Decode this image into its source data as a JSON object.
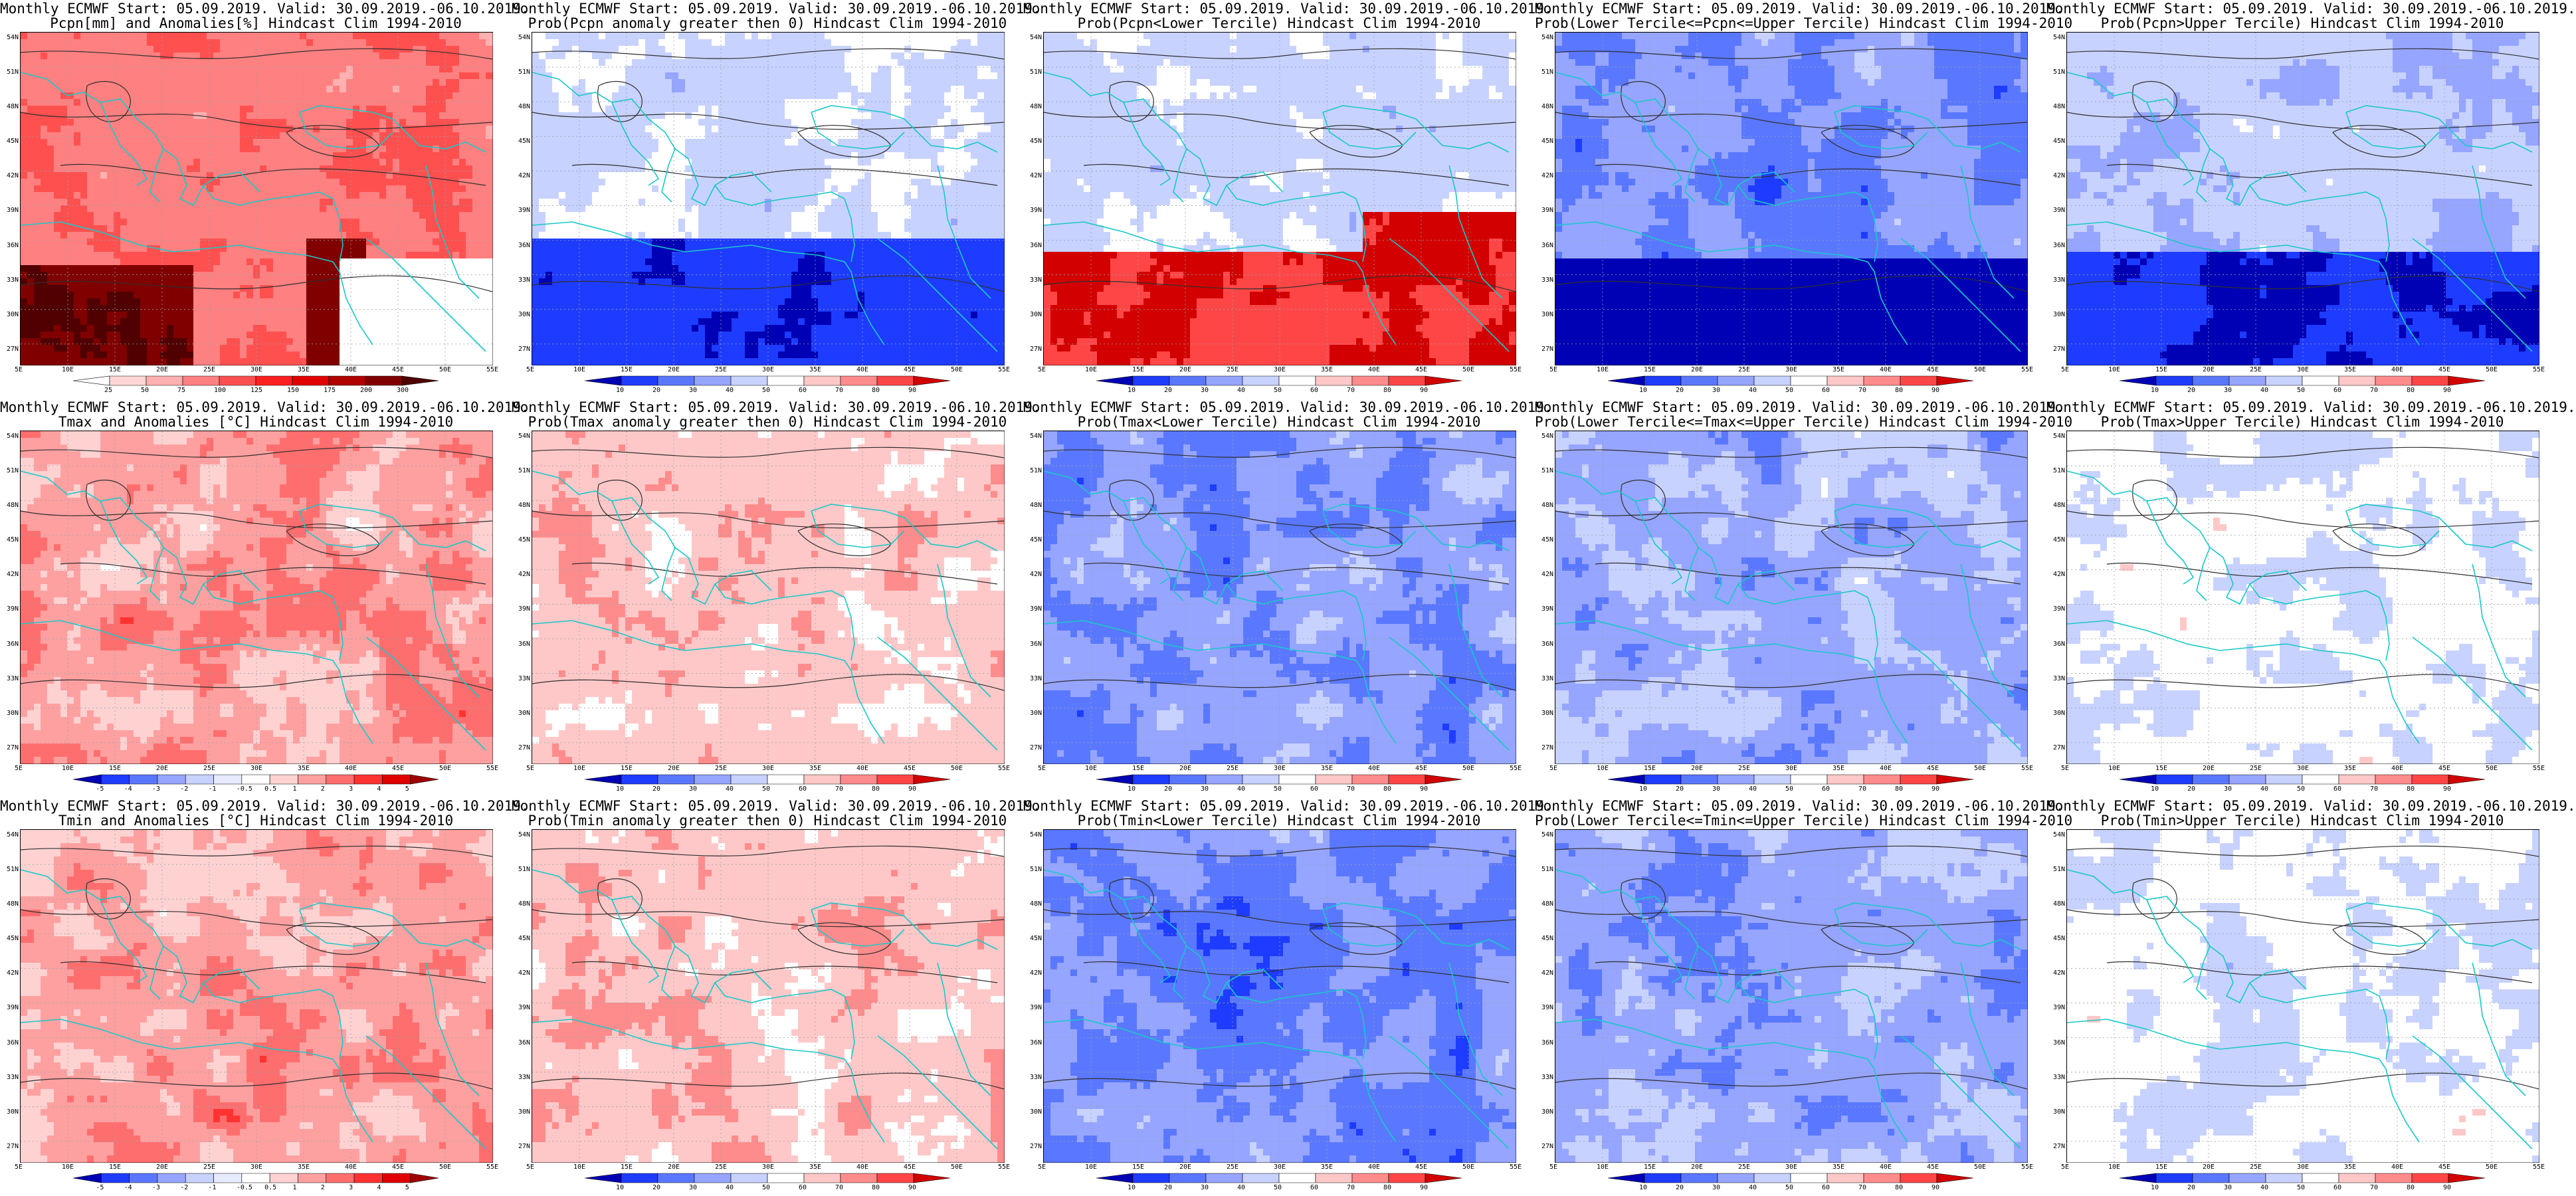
{
  "panels": [
    {
      "title1": "Monthly ECMWF Start: 05.09.2019. Valid: 30.09.2019.-06.10.2019.",
      "title2": "Pcpn[mm] and Anomalies[%] Hindcast Clim 1994-2010",
      "scale": "pcpn",
      "field": "pcpn_anom"
    },
    {
      "title1": "Monthly ECMWF Start: 05.09.2019. Valid: 30.09.2019.-06.10.2019.",
      "title2": "Prob(Pcpn anomaly greater then 0) Hindcast Clim 1994-2010",
      "scale": "prob",
      "field": "pcpn_pos"
    },
    {
      "title1": "Monthly ECMWF Start: 05.09.2019. Valid: 30.09.2019.-06.10.2019.",
      "title2": "Prob(Pcpn<Lower Tercile) Hindcast Clim 1994-2010",
      "scale": "prob",
      "field": "pcpn_low"
    },
    {
      "title1": "Monthly ECMWF Start: 05.09.2019. Valid: 30.09.2019.-06.10.2019.",
      "title2": "Prob(Lower Tercile<=Pcpn<=Upper Tercile) Hindcast Clim 1994-2010",
      "scale": "prob",
      "field": "pcpn_mid"
    },
    {
      "title1": "Monthly ECMWF Start: 05.09.2019. Valid: 30.09.2019.-06.10.2019.",
      "title2": "Prob(Pcpn>Upper Tercile) Hindcast Clim 1994-2010",
      "scale": "prob",
      "field": "pcpn_up"
    },
    {
      "title1": "Monthly ECMWF Start: 05.09.2019. Valid: 30.09.2019.-06.10.2019.",
      "title2": "Tmax and Anomalies [°C] Hindcast Clim 1994-2010",
      "scale": "temp",
      "field": "tmax_anom"
    },
    {
      "title1": "Monthly ECMWF Start: 05.09.2019. Valid: 30.09.2019.-06.10.2019.",
      "title2": "Prob(Tmax anomaly greater then 0) Hindcast Clim 1994-2010",
      "scale": "prob",
      "field": "tmax_pos"
    },
    {
      "title1": "Monthly ECMWF Start: 05.09.2019. Valid: 30.09.2019.-06.10.2019.",
      "title2": "Prob(Tmax<Lower Tercile) Hindcast Clim 1994-2010",
      "scale": "prob",
      "field": "tmax_low"
    },
    {
      "title1": "Monthly ECMWF Start: 05.09.2019. Valid: 30.09.2019.-06.10.2019.",
      "title2": "Prob(Lower Tercile<=Tmax<=Upper Tercile) Hindcast Clim 1994-2010",
      "scale": "prob",
      "field": "tmax_mid"
    },
    {
      "title1": "Monthly ECMWF Start: 05.09.2019. Valid: 30.09.2019.-06.10.2019.",
      "title2": "Prob(Tmax>Upper Tercile) Hindcast Clim 1994-2010",
      "scale": "prob",
      "field": "tmax_up"
    },
    {
      "title1": "Monthly ECMWF Start: 05.09.2019. Valid: 30.09.2019.-06.10.2019.",
      "title2": "Tmin and Anomalies [°C] Hindcast Clim 1994-2010",
      "scale": "temp",
      "field": "tmin_anom"
    },
    {
      "title1": "Monthly ECMWF Start: 05.09.2019. Valid: 30.09.2019.-06.10.2019.",
      "title2": "Prob(Tmin anomaly greater then 0) Hindcast Clim 1994-2010",
      "scale": "prob",
      "field": "tmin_pos"
    },
    {
      "title1": "Monthly ECMWF Start: 05.09.2019. Valid: 30.09.2019.-06.10.2019.",
      "title2": "Prob(Tmin<Lower Tercile) Hindcast Clim 1994-2010",
      "scale": "prob",
      "field": "tmin_low"
    },
    {
      "title1": "Monthly ECMWF Start: 05.09.2019. Valid: 30.09.2019.-06.10.2019.",
      "title2": "Prob(Lower Tercile<=Tmin<=Upper Tercile) Hindcast Clim 1994-2010",
      "scale": "prob",
      "field": "tmin_mid"
    },
    {
      "title1": "Monthly ECMWF Start: 05.09.2019. Valid: 30.09.2019.-06.10.2019.",
      "title2": "Prob(Tmin>Upper Tercile) Hindcast Clim 1994-2010",
      "scale": "prob",
      "field": "tmin_up"
    }
  ],
  "lat_labels": [
    "54N",
    "51N",
    "48N",
    "45N",
    "42N",
    "39N",
    "36N",
    "33N",
    "30N",
    "27N"
  ],
  "lon_labels": [
    "5E",
    "10E",
    "15E",
    "20E",
    "25E",
    "30E",
    "35E",
    "40E",
    "45E",
    "50E",
    "55E"
  ],
  "colorbars": {
    "pcpn": {
      "ticks": [
        "25",
        "50",
        "75",
        "100",
        "125",
        "150",
        "175",
        "200",
        "300"
      ],
      "colors": [
        "#ffffff",
        "#ffd6d6",
        "#ffb0b0",
        "#ff8080",
        "#ff5050",
        "#ff2020",
        "#e00000",
        "#b00000",
        "#800000",
        "#500000"
      ]
    },
    "prob": {
      "ticks": [
        "10",
        "20",
        "30",
        "40",
        "50",
        "60",
        "70",
        "80",
        "90"
      ],
      "colors": [
        "#0000b4",
        "#1e3cff",
        "#5a78ff",
        "#96a5ff",
        "#c8d2ff",
        "#ffffff",
        "#ffc8c8",
        "#ff8c8c",
        "#ff4646",
        "#d20000"
      ]
    },
    "temp": {
      "ticks": [
        "-5",
        "-4",
        "-3",
        "-2",
        "-1",
        "-0.5",
        "0.5",
        "1",
        "2",
        "3",
        "4",
        "5"
      ],
      "colors": [
        "#0000b4",
        "#1e3cff",
        "#5a78ff",
        "#96a5ff",
        "#c8d2ff",
        "#e6ebff",
        "#ffffff",
        "#ffd2d2",
        "#ffa0a0",
        "#ff6e6e",
        "#ff3232",
        "#e00000",
        "#a00000"
      ]
    }
  },
  "colors": {
    "coast": "#19c8c8",
    "contour": "#303030",
    "grid": "#9aa0a8"
  }
}
